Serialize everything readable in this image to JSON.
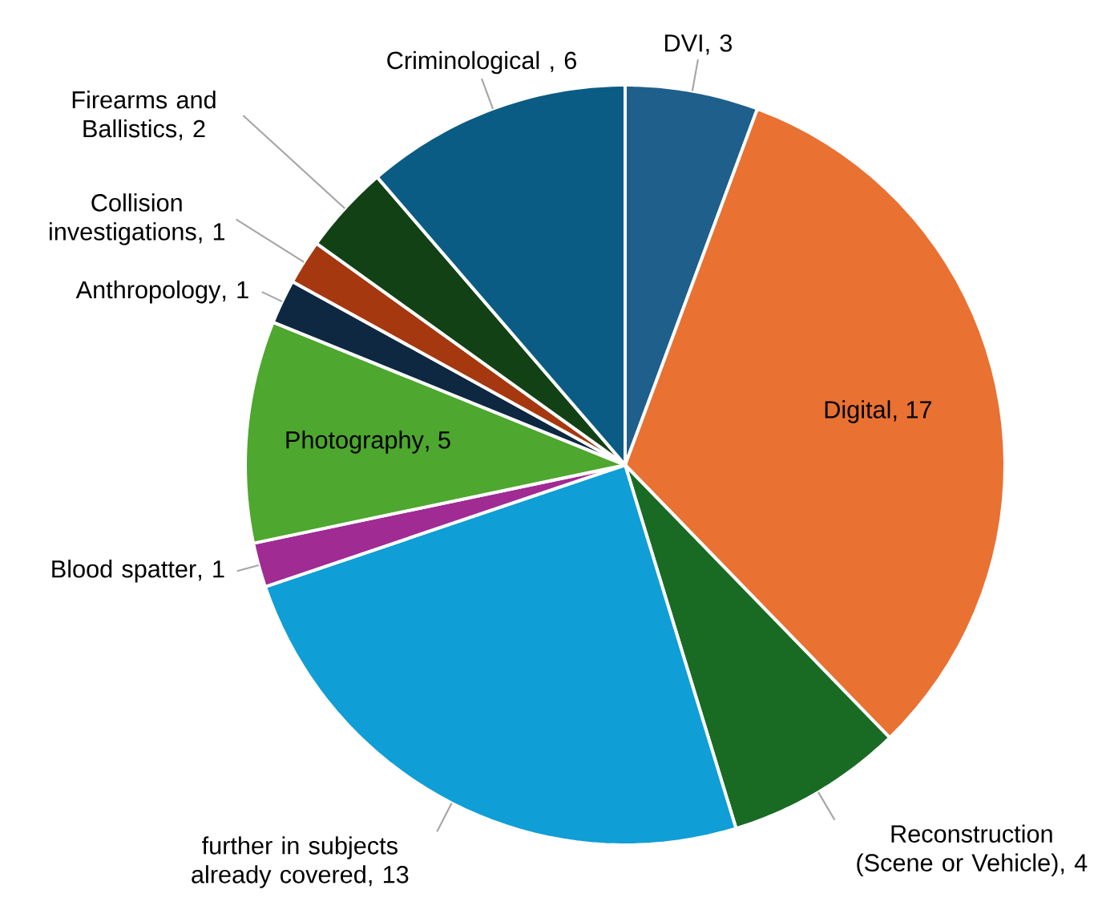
{
  "chart_data": {
    "type": "pie",
    "categories": [
      "DVI",
      "Digital",
      "Reconstruction (Scene or Vehicle)",
      "further in subjects already covered",
      "Blood spatter",
      "Photography",
      "Anthropology",
      "Collision investigations",
      "Firearms and Ballistics",
      "Criminological "
    ],
    "values": [
      3,
      17,
      4,
      13,
      1,
      5,
      1,
      1,
      2,
      6
    ],
    "colors": [
      "#1f5f8b",
      "#e97132",
      "#196b24",
      "#0f9ed5",
      "#a02b93",
      "#4ea72e",
      "#0e2841",
      "#a5380f",
      "#124116",
      "#0b5c84"
    ],
    "value_labels": [
      ", 3",
      ", 17",
      ", 4",
      ", 13",
      ", 1",
      ", 5",
      ", 1",
      ", 1",
      ", 2",
      ", 6"
    ]
  }
}
